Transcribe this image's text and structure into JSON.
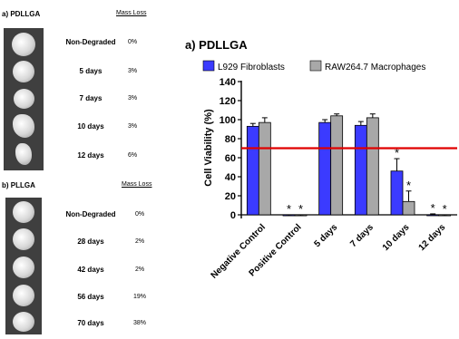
{
  "panel_a": {
    "title": "a) PDLLGA",
    "mass_loss_header": "Mass Loss",
    "rows": [
      {
        "label": "Non-Degraded",
        "loss": "0%"
      },
      {
        "label": "5 days",
        "loss": "3%"
      },
      {
        "label": "7 days",
        "loss": "3%"
      },
      {
        "label": "10 days",
        "loss": "3%"
      },
      {
        "label": "12 days",
        "loss": "6%"
      }
    ]
  },
  "panel_b": {
    "title": "b) PLLGA",
    "mass_loss_header": "Mass Loss",
    "rows": [
      {
        "label": "Non-Degraded",
        "loss": "0%"
      },
      {
        "label": "28 days",
        "loss": "2%"
      },
      {
        "label": "42 days",
        "loss": "2%"
      },
      {
        "label": "56 days",
        "loss": "19%"
      },
      {
        "label": "70 days",
        "loss": "38%"
      }
    ]
  },
  "colors": {
    "fibroblasts": "#3b3bff",
    "macrophages": "#a8a8a8",
    "threshold": "#e00000"
  },
  "chart_data": {
    "type": "bar",
    "title": "a) PDLLGA",
    "ylabel": "Cell Viability (%)",
    "xlabel": "",
    "ylim": [
      0,
      140
    ],
    "yticks": [
      0,
      20,
      40,
      60,
      80,
      100,
      120,
      140
    ],
    "categories": [
      "Negative Control",
      "Positive Control",
      "5 days",
      "7 days",
      "10 days",
      "12 days"
    ],
    "series": [
      {
        "name": "L929 Fibroblasts",
        "values": [
          93,
          -1,
          97,
          94,
          46,
          0
        ],
        "errors": [
          3,
          1,
          3,
          4,
          13,
          1
        ]
      },
      {
        "name": "RAW264.7 Macrophages",
        "values": [
          97,
          -1,
          104,
          102,
          14,
          -1
        ],
        "errors": [
          5,
          1,
          2,
          4,
          11,
          1
        ]
      }
    ],
    "threshold": 70,
    "annotations": [
      {
        "category": "Positive Control",
        "series": 0,
        "text": "*"
      },
      {
        "category": "Positive Control",
        "series": 1,
        "text": "*"
      },
      {
        "category": "10 days",
        "series": 0,
        "text": "*"
      },
      {
        "category": "10 days",
        "series": 1,
        "text": "*"
      },
      {
        "category": "12 days",
        "series": 0,
        "text": "*"
      },
      {
        "category": "12 days",
        "series": 1,
        "text": "*"
      }
    ],
    "legend_position": "top",
    "grid": false
  }
}
